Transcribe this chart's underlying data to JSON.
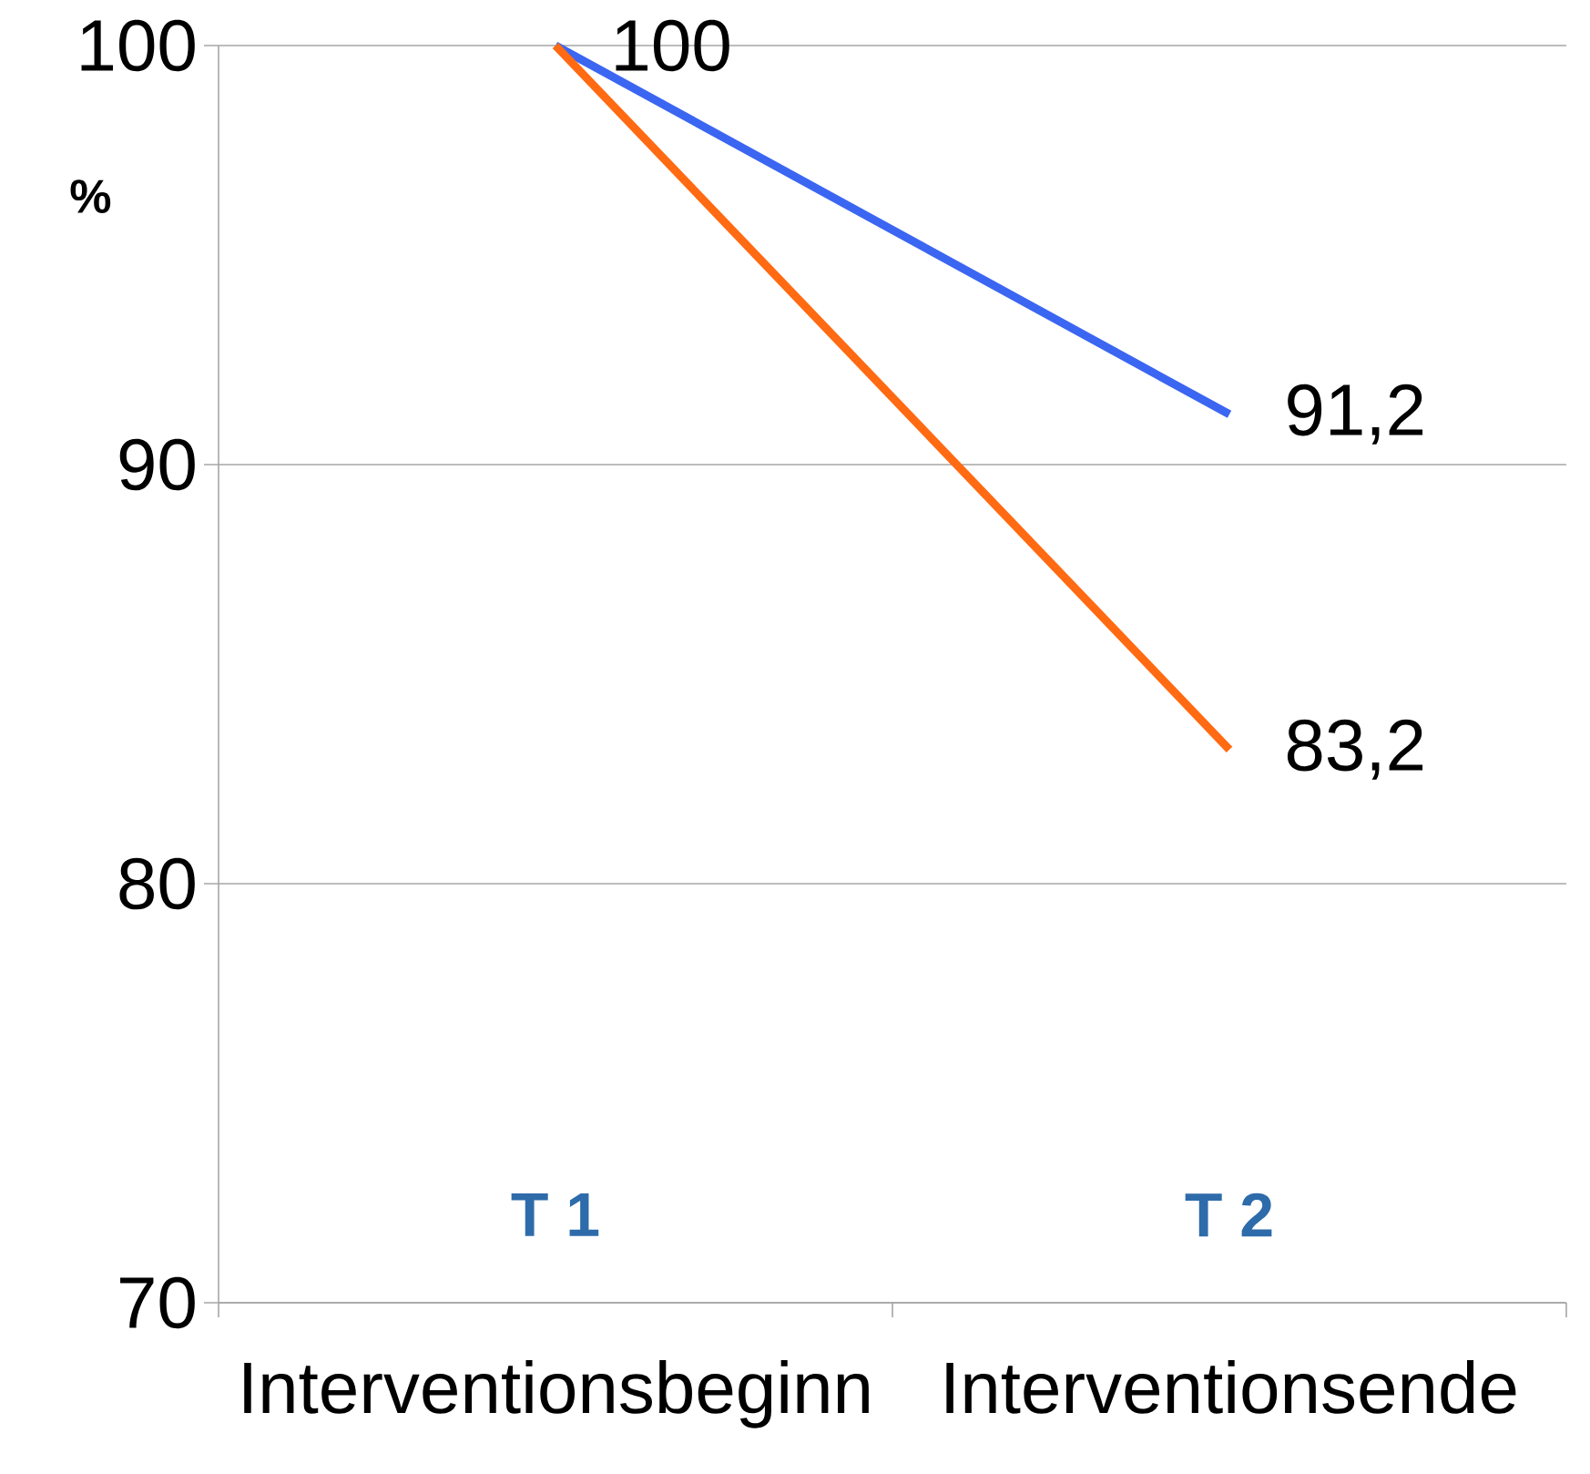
{
  "chart_data": {
    "type": "line",
    "ylabel": "%",
    "categories": [
      "Interventionsbeginn",
      "Interventionsende"
    ],
    "series": [
      {
        "color": "#3b66f2",
        "values": [
          100,
          91.2
        ],
        "value_labels": [
          "100",
          "91,2"
        ]
      },
      {
        "color": "#ff6a12",
        "values": [
          100,
          83.2
        ],
        "value_labels": [
          null,
          "83,2"
        ]
      }
    ],
    "ylim": [
      70,
      100
    ],
    "yticks": [
      70,
      80,
      90,
      100
    ],
    "grid": "y",
    "annotations": [
      "T 1",
      "T 2"
    ]
  }
}
